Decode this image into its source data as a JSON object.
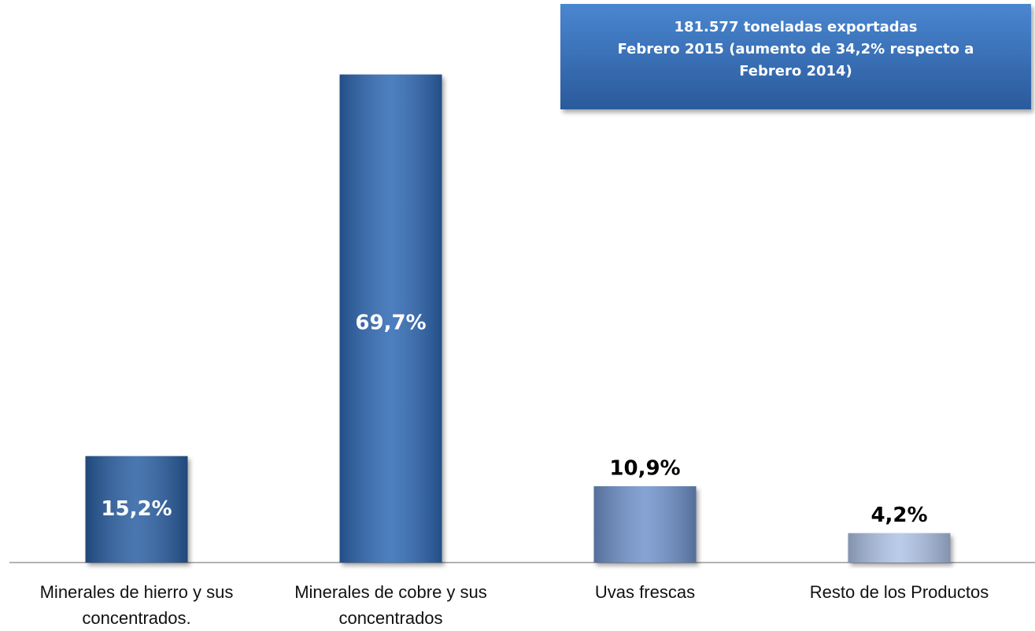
{
  "chart_data": {
    "type": "bar",
    "categories": [
      "Minerales de hierro y sus concentrados.",
      "Minerales de cobre y sus concentrados",
      "Uvas frescas",
      "Resto de los Productos"
    ],
    "values": [
      15.2,
      69.7,
      10.9,
      4.2
    ],
    "value_labels": [
      "15,2%",
      "69,7%",
      "10,9%",
      "4,2%"
    ],
    "colors": [
      "#2a5fa3",
      "#2f68b3",
      "#6f93cc",
      "#aec3e6"
    ],
    "ylim": [
      0,
      70
    ],
    "annotation": [
      "181.577 toneladas exportadas",
      "Febrero 2015  (aumento de 34,2% respecto a",
      "Febrero 2014)"
    ]
  }
}
